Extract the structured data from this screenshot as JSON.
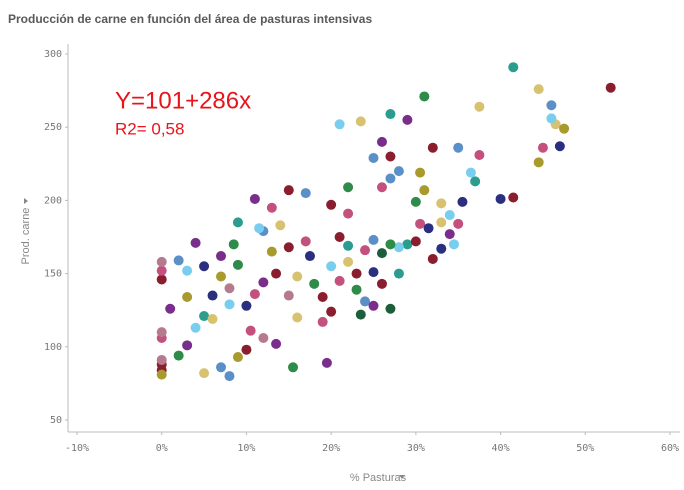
{
  "chart_data": {
    "type": "scatter",
    "title": "Producción de carne en función del área de pasturas intensivas",
    "x_label": "% Pasturas",
    "y_label": "Prod. carne",
    "annotations": [
      "Y=101+286x",
      "R2= 0,58"
    ],
    "xlim": [
      -10,
      60
    ],
    "ylim": [
      45,
      305
    ],
    "xticks": [
      {
        "value": -10,
        "label": "-10%"
      },
      {
        "value": 0,
        "label": "0%"
      },
      {
        "value": 10,
        "label": "10%"
      },
      {
        "value": 20,
        "label": "20%"
      },
      {
        "value": 30,
        "label": "30%"
      },
      {
        "value": 40,
        "label": "40%"
      },
      {
        "value": 50,
        "label": "50%"
      },
      {
        "value": 60,
        "label": "60%"
      }
    ],
    "yticks": [
      50,
      100,
      150,
      200,
      250,
      300
    ],
    "grid": false,
    "series": [
      {
        "color": "#2a9d8f",
        "x": [
          41.5,
          27,
          37,
          29,
          22,
          9,
          5,
          28
        ],
        "values": [
          291,
          259,
          213,
          170,
          169,
          185,
          121,
          150
        ]
      },
      {
        "color": "#8b1e2e",
        "x": [
          53,
          41.5,
          32,
          27,
          30,
          21,
          20,
          15,
          0,
          0,
          0,
          10,
          13.5,
          20,
          19,
          26,
          23,
          15,
          32
        ],
        "values": [
          277,
          202,
          236,
          230,
          172,
          175,
          197,
          207,
          146,
          88,
          84,
          98,
          150,
          124,
          134,
          143,
          150,
          168,
          160
        ]
      },
      {
        "color": "#d8c270",
        "x": [
          44.5,
          46.5,
          37.5,
          23.5,
          33,
          33,
          14,
          6,
          5,
          16,
          16,
          22
        ],
        "values": [
          276,
          252,
          264,
          254,
          198,
          185,
          183,
          119,
          82,
          148,
          120,
          158
        ]
      },
      {
        "color": "#5b8fc7",
        "x": [
          46,
          35,
          25,
          28,
          27,
          25,
          17,
          12,
          2,
          7,
          8,
          24
        ],
        "values": [
          265,
          236,
          229,
          220,
          215,
          173,
          205,
          179,
          159,
          86,
          80,
          131
        ]
      },
      {
        "color": "#79cdee",
        "x": [
          46,
          21,
          36.5,
          34,
          34.5,
          28,
          11.5,
          3,
          4,
          20,
          8
        ],
        "values": [
          256,
          252,
          219,
          190,
          170,
          168,
          181,
          152,
          113,
          155,
          129
        ]
      },
      {
        "color": "#a89a2c",
        "x": [
          47.5,
          44.5,
          30.5,
          31,
          0,
          3,
          9,
          13,
          7
        ],
        "values": [
          249,
          226,
          219,
          207,
          81,
          134,
          93,
          165,
          148
        ]
      },
      {
        "color": "#c4507e",
        "x": [
          45,
          37.5,
          26,
          30.5,
          35,
          24,
          22,
          13,
          0,
          0,
          11,
          21,
          19,
          10.5,
          17
        ],
        "values": [
          236,
          231,
          209,
          184,
          184,
          166,
          191,
          195,
          152,
          106,
          136,
          145,
          117,
          111,
          172
        ]
      },
      {
        "color": "#2b2f7f",
        "x": [
          47,
          40,
          35.5,
          31.5,
          33,
          5,
          10,
          25,
          17.5,
          6
        ],
        "values": [
          237,
          201,
          199,
          181,
          167,
          155,
          128,
          151,
          162,
          135
        ]
      },
      {
        "color": "#2e8b4a",
        "x": [
          31,
          22,
          30,
          27,
          8.5,
          9,
          2,
          15.5,
          18,
          23
        ],
        "values": [
          271,
          209,
          199,
          170,
          170,
          156,
          94,
          86,
          143,
          139
        ]
      },
      {
        "color": "#7a2e8c",
        "x": [
          29,
          26,
          34,
          11,
          7,
          4,
          1,
          3,
          13.5,
          12,
          19.5,
          25
        ],
        "values": [
          255,
          240,
          177,
          201,
          162,
          171,
          126,
          101,
          102,
          144,
          89,
          128
        ]
      },
      {
        "color": "#b57a8e",
        "x": [
          0,
          0,
          0,
          12,
          15,
          8
        ],
        "values": [
          158,
          110,
          91,
          106,
          135,
          140
        ]
      },
      {
        "color": "#1d5e3a",
        "x": [
          26,
          23.5,
          27
        ],
        "values": [
          164,
          122,
          126
        ]
      }
    ]
  }
}
